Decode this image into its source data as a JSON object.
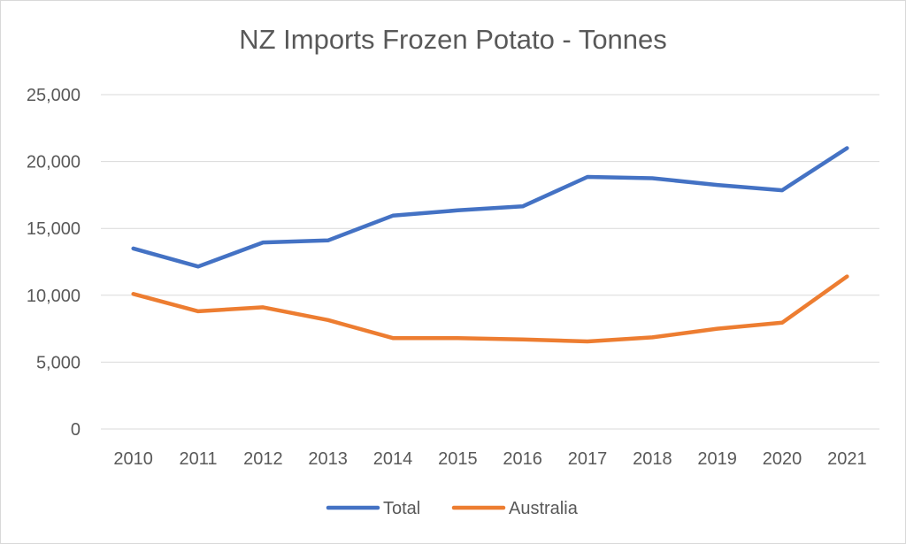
{
  "chart_data": {
    "type": "line",
    "title": "NZ Imports Frozen Potato - Tonnes",
    "x": [
      "2010",
      "2011",
      "2012",
      "2013",
      "2014",
      "2015",
      "2016",
      "2017",
      "2018",
      "2019",
      "2020",
      "2021"
    ],
    "series": [
      {
        "name": "Total",
        "color": "#4472c4",
        "values": [
          13500,
          12150,
          13950,
          14100,
          15950,
          16350,
          16650,
          18850,
          18750,
          18250,
          17850,
          21000
        ]
      },
      {
        "name": "Australia",
        "color": "#ed7d31",
        "values": [
          10100,
          8800,
          9100,
          8150,
          6800,
          6800,
          6700,
          6550,
          6850,
          7500,
          7950,
          11400
        ]
      }
    ],
    "ylim": [
      0,
      25000
    ],
    "yticks": [
      0,
      5000,
      10000,
      15000,
      20000,
      25000
    ],
    "ytick_labels": [
      "0",
      "5,000",
      "10,000",
      "15,000",
      "20,000",
      "25,000"
    ],
    "grid": true,
    "legend": "bottom"
  }
}
